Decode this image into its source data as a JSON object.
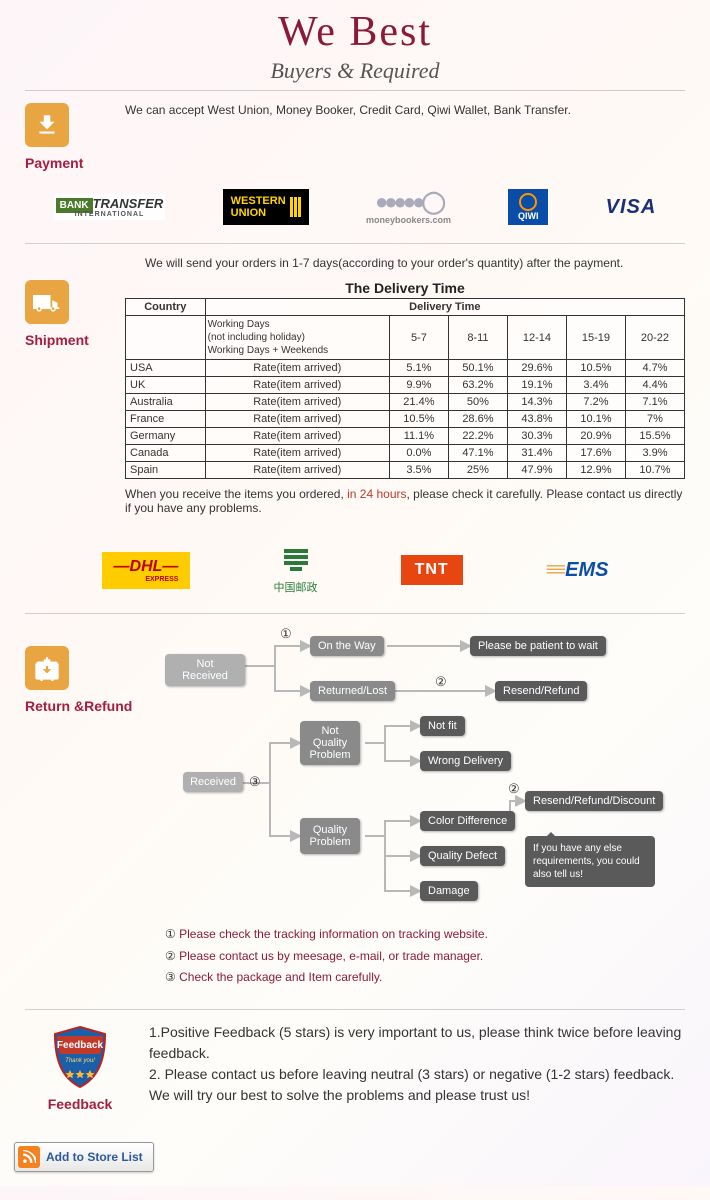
{
  "title": "We   Best",
  "subtitle": "Buyers & Required",
  "payment": {
    "label": "Payment",
    "text": "We can accept West Union, Money Booker, Credit Card, Qiwi Wallet, Bank Transfer.",
    "logos": {
      "bank_transfer_1": "BANK",
      "bank_transfer_2": "TRANSFER",
      "bank_transfer_3": "INTERNATIONAL",
      "wu_1": "WESTERN",
      "wu_2": "UNION",
      "mb": "moneybookers.com",
      "qiwi": "QIWI",
      "visa": "VISA"
    }
  },
  "shipment": {
    "label": "Shipment",
    "intro": "We will send your orders in 1-7 days(according to your order's quantity) after the payment.",
    "table_title": "The Delivery Time",
    "col_country": "Country",
    "col_delivery": "Delivery Time",
    "working_days_1": "Working Days",
    "working_days_2": "(not including holiday)",
    "working_days_3": "Working Days + Weekends",
    "ranges": [
      "5-7",
      "8-11",
      "12-14",
      "15-19",
      "20-22"
    ],
    "rate_label": "Rate(item arrived)",
    "rows": [
      {
        "c": "USA",
        "v": [
          "5.1%",
          "50.1%",
          "29.6%",
          "10.5%",
          "4.7%"
        ]
      },
      {
        "c": "UK",
        "v": [
          "9.9%",
          "63.2%",
          "19.1%",
          "3.4%",
          "4.4%"
        ]
      },
      {
        "c": "Australia",
        "v": [
          "21.4%",
          "50%",
          "14.3%",
          "7.2%",
          "7.1%"
        ]
      },
      {
        "c": "France",
        "v": [
          "10.5%",
          "28.6%",
          "43.8%",
          "10.1%",
          "7%"
        ]
      },
      {
        "c": "Germany",
        "v": [
          "11.1%",
          "22.2%",
          "30.3%",
          "20.9%",
          "15.5%"
        ]
      },
      {
        "c": "Canada",
        "v": [
          "0.0%",
          "47.1%",
          "31.4%",
          "17.6%",
          "3.9%"
        ]
      },
      {
        "c": "Spain",
        "v": [
          "3.5%",
          "25%",
          "47.9%",
          "12.9%",
          "10.7%"
        ]
      }
    ],
    "check_1": "When you receive the items you ordered, ",
    "check_red": "in 24 hours",
    "check_2": ", please check it carefully. Please contact us directly if you have any problems.",
    "carriers": {
      "dhl": "DHL",
      "dhl_sub": "EXPRESS",
      "chinapost": "中国邮政",
      "tnt": "TNT",
      "ems": "EMS"
    }
  },
  "return": {
    "label": "Return &Refund",
    "nodes": {
      "not_received": "Not Received",
      "received": "Received",
      "on_the_way": "On the Way",
      "returned_lost": "Returned/Lost",
      "please_wait": "Please be patient to wait",
      "resend_refund": "Resend/Refund",
      "not_quality": "Not Quality Problem",
      "quality": "Quality Problem",
      "not_fit": "Not fit",
      "wrong_delivery": "Wrong Delivery",
      "color_diff": "Color Difference",
      "quality_defect": "Quality Defect",
      "damage": "Damage",
      "resend_refund_discount": "Resend/Refund/Discount",
      "bubble": "If you have any else requirements, you could also tell us!"
    },
    "circled": {
      "1": "①",
      "2": "②",
      "3": "③"
    },
    "footnotes": [
      {
        "n": "①",
        "t": "Please check the tracking information on tracking website."
      },
      {
        "n": "②",
        "t": "Please contact us by meesage, e-mail, or trade manager."
      },
      {
        "n": "③",
        "t": "Check the package and Item carefully."
      }
    ]
  },
  "feedback": {
    "label": "Feedback",
    "badge_text": "Feedback",
    "badge_sub": "Thank you!",
    "lines": [
      "1.Positive Feedback (5 stars) is very important to us, please think twice before leaving feedback.",
      "2. Please contact us before leaving neutral (3 stars) or negative (1-2 stars) feedback. We will try our best to solve the problems and please trust us!"
    ]
  },
  "add_to_store": "Add to Store List"
}
